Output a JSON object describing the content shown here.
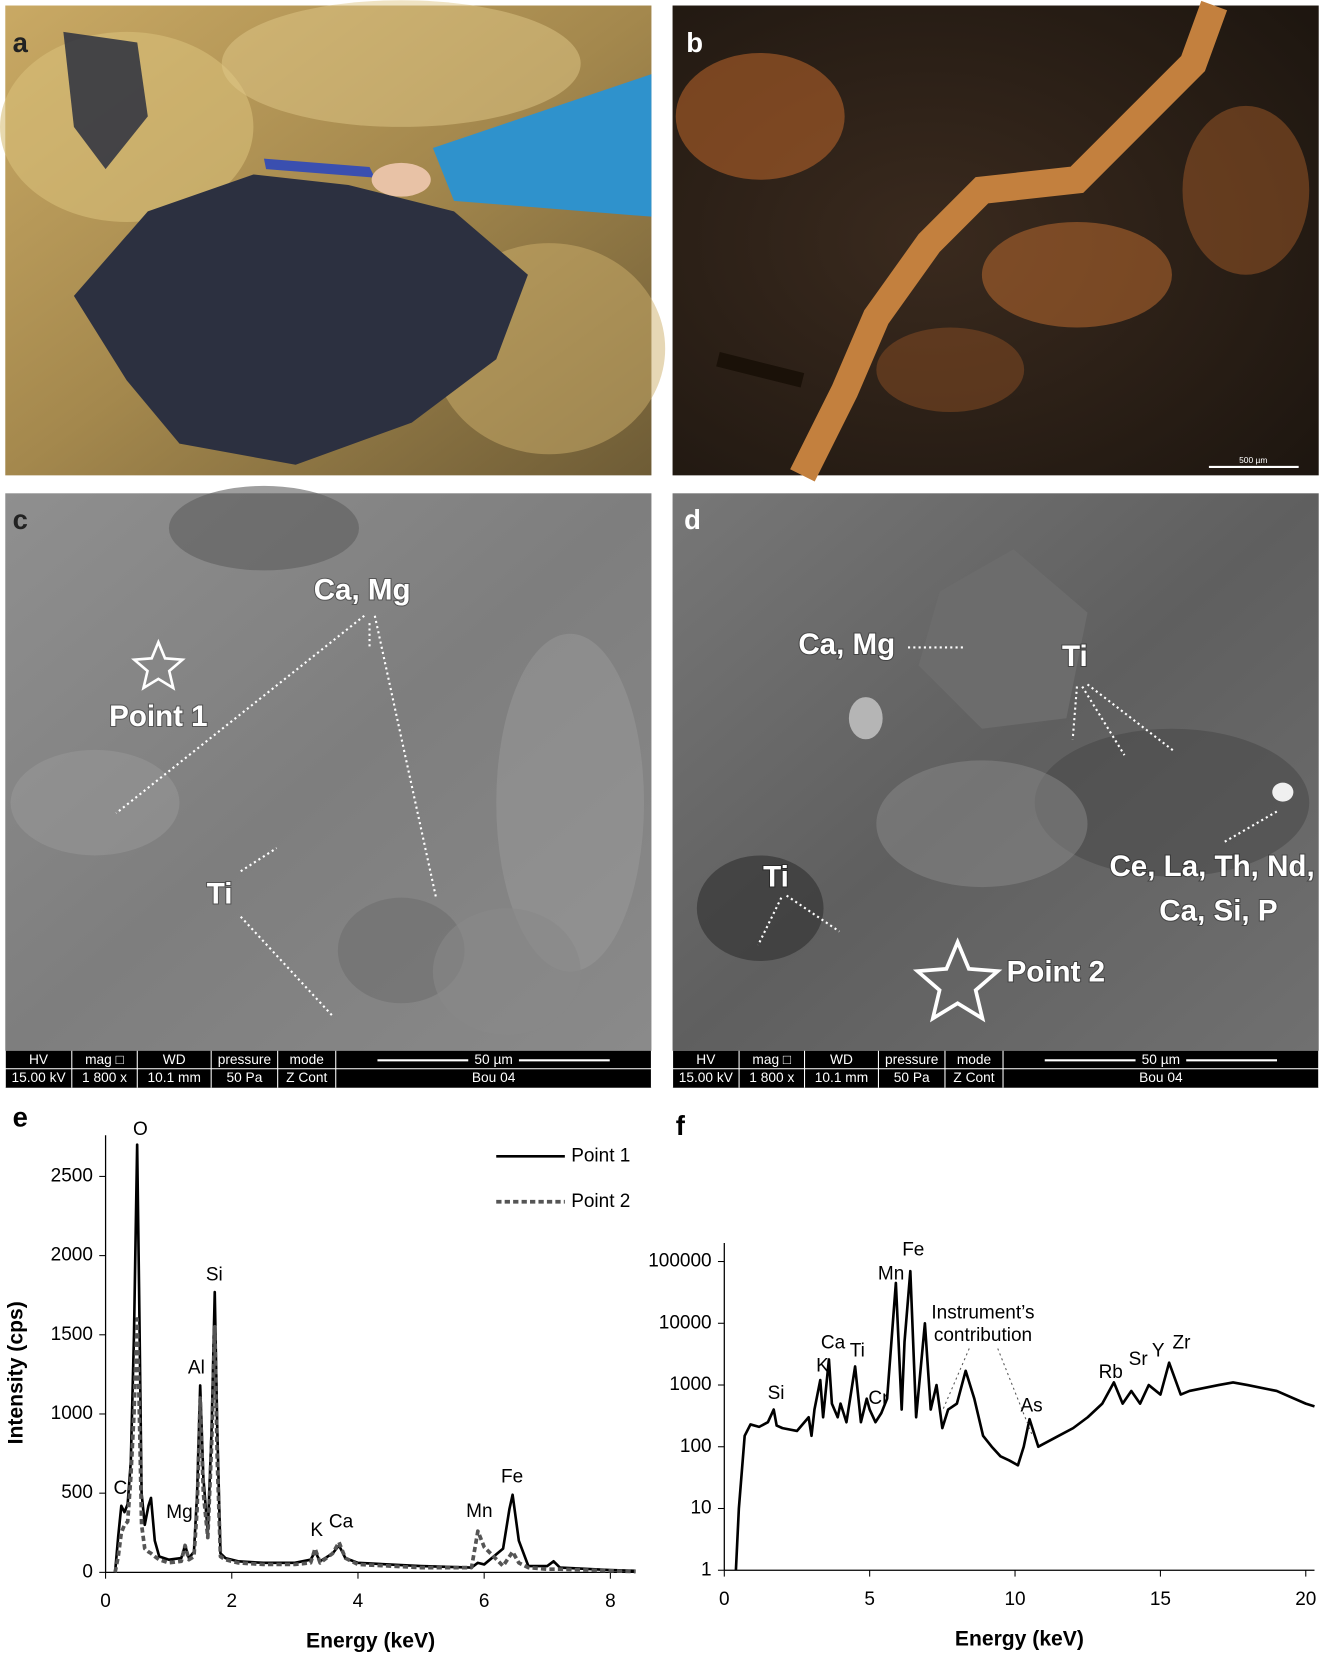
{
  "panels": [
    {
      "label": "a"
    },
    {
      "label": "b",
      "scale_bar": "500 µm"
    },
    {
      "label": "c",
      "annotations": [
        "Ca, Mg",
        "Point 1",
        "Ti"
      ],
      "info_bar": {
        "headers": [
          "HV",
          "mag □",
          "WD",
          "pressure",
          "mode"
        ],
        "values": [
          "15.00 kV",
          "1 800 x",
          "10.1 mm",
          "50 Pa",
          "Z Cont"
        ],
        "scale": "50 µm",
        "sample": "Bou 04"
      }
    },
    {
      "label": "d",
      "annotations": [
        "Ca, Mg",
        "Ti",
        "Ti",
        "Ce, La, Th, Nd,",
        "Ca, Si, P",
        "Point 2"
      ],
      "info_bar": {
        "headers": [
          "HV",
          "mag □",
          "WD",
          "pressure",
          "mode"
        ],
        "values": [
          "15.00 kV",
          "1 800 x",
          "10.1 mm",
          "50 Pa",
          "Z Cont"
        ],
        "scale": "50 µm",
        "sample": "Bou 04"
      }
    }
  ],
  "chart_data": [
    {
      "type": "line",
      "label": "e",
      "x_label": "Energy (keV)",
      "y_label": "Intensity (cps)",
      "x": [
        0.15,
        0.2,
        0.25,
        0.3,
        0.35,
        0.4,
        0.45,
        0.5,
        0.53,
        0.57,
        0.62,
        0.68,
        0.72,
        0.78,
        0.85,
        1.0,
        1.2,
        1.26,
        1.32,
        1.4,
        1.45,
        1.5,
        1.55,
        1.62,
        1.68,
        1.73,
        1.77,
        1.82,
        1.9,
        2.1,
        2.5,
        3.0,
        3.25,
        3.32,
        3.4,
        3.6,
        3.7,
        3.8,
        4.0,
        5.0,
        5.8,
        5.9,
        6.0,
        6.3,
        6.4,
        6.45,
        6.55,
        6.7,
        7.0,
        7.1,
        7.2,
        8.0,
        8.4
      ],
      "series": [
        {
          "name": "Point 1",
          "color": "#000000",
          "linestyle": "solid",
          "values": [
            0,
            230,
            420,
            380,
            430,
            700,
            1500,
            2700,
            1800,
            500,
            300,
            420,
            470,
            200,
            100,
            80,
            90,
            170,
            90,
            130,
            500,
            1180,
            600,
            250,
            900,
            1770,
            900,
            120,
            90,
            70,
            60,
            60,
            80,
            130,
            70,
            120,
            170,
            90,
            60,
            40,
            30,
            60,
            50,
            150,
            400,
            490,
            200,
            40,
            40,
            70,
            30,
            15,
            10
          ]
        },
        {
          "name": "Point 2",
          "color": "#555555",
          "linestyle": "dashed",
          "values": [
            0,
            100,
            250,
            300,
            320,
            600,
            1000,
            1600,
            1100,
            300,
            150,
            130,
            120,
            100,
            80,
            60,
            70,
            170,
            80,
            100,
            400,
            1100,
            500,
            220,
            800,
            1550,
            700,
            100,
            80,
            60,
            50,
            50,
            60,
            150,
            60,
            120,
            190,
            90,
            50,
            30,
            30,
            260,
            160,
            40,
            100,
            130,
            60,
            30,
            20,
            20,
            20,
            10,
            5
          ]
        }
      ],
      "xlim": [
        0,
        8.4
      ],
      "xticks": [
        0,
        2,
        4,
        6,
        8
      ],
      "ylim": [
        0,
        2760
      ],
      "yticks": [
        0,
        500,
        1000,
        1500,
        2000,
        2500
      ],
      "annotations": [
        "O",
        "Si",
        "Al",
        "C",
        "Mg",
        "K",
        "Ca",
        "Mn",
        "Fe"
      ]
    },
    {
      "type": "line",
      "label": "f",
      "x_label": "Energy (keV)",
      "yscale": "log",
      "x": [
        0.4,
        0.5,
        0.7,
        0.9,
        1.2,
        1.5,
        1.7,
        1.8,
        2.0,
        2.5,
        2.9,
        3.0,
        3.1,
        3.3,
        3.4,
        3.6,
        3.7,
        3.9,
        4.0,
        4.2,
        4.5,
        4.7,
        4.9,
        5.0,
        5.2,
        5.4,
        5.6,
        5.9,
        6.1,
        6.2,
        6.4,
        6.6,
        6.9,
        7.1,
        7.3,
        7.5,
        7.7,
        8.0,
        8.3,
        8.6,
        8.9,
        9.2,
        9.5,
        9.8,
        10.1,
        10.3,
        10.5,
        10.8,
        11.5,
        12.0,
        12.5,
        13.0,
        13.4,
        13.7,
        14.0,
        14.3,
        14.6,
        15.0,
        15.3,
        15.7,
        16.0,
        17.0,
        17.5,
        18.0,
        19.0,
        20.0,
        20.3
      ],
      "series": [
        {
          "color": "#000000",
          "linestyle": "solid",
          "values": [
            1,
            10,
            150,
            230,
            210,
            250,
            400,
            220,
            200,
            180,
            300,
            150,
            400,
            1200,
            300,
            2600,
            500,
            300,
            500,
            250,
            2000,
            250,
            600,
            400,
            250,
            350,
            600,
            45000,
            400,
            5000,
            70000,
            300,
            10000,
            400,
            1000,
            200,
            400,
            500,
            1700,
            600,
            150,
            100,
            70,
            60,
            50,
            100,
            280,
            100,
            150,
            200,
            300,
            500,
            1100,
            500,
            800,
            500,
            1000,
            700,
            2300,
            700,
            800,
            1000,
            1100,
            1000,
            800,
            500,
            450
          ]
        }
      ],
      "xlim": [
        0,
        20.3
      ],
      "xticks": [
        0,
        5,
        10,
        15,
        20
      ],
      "ylim": [
        1,
        200000
      ],
      "yticks": [
        1,
        10,
        100,
        1000,
        10000,
        100000
      ],
      "annotations": [
        "Si",
        "K",
        "Ca",
        "Ti",
        "Cr",
        "Mn",
        "Fe",
        "Instrument’s",
        "contribution",
        "As",
        "Rb",
        "Sr",
        "Y",
        "Zr"
      ]
    }
  ]
}
